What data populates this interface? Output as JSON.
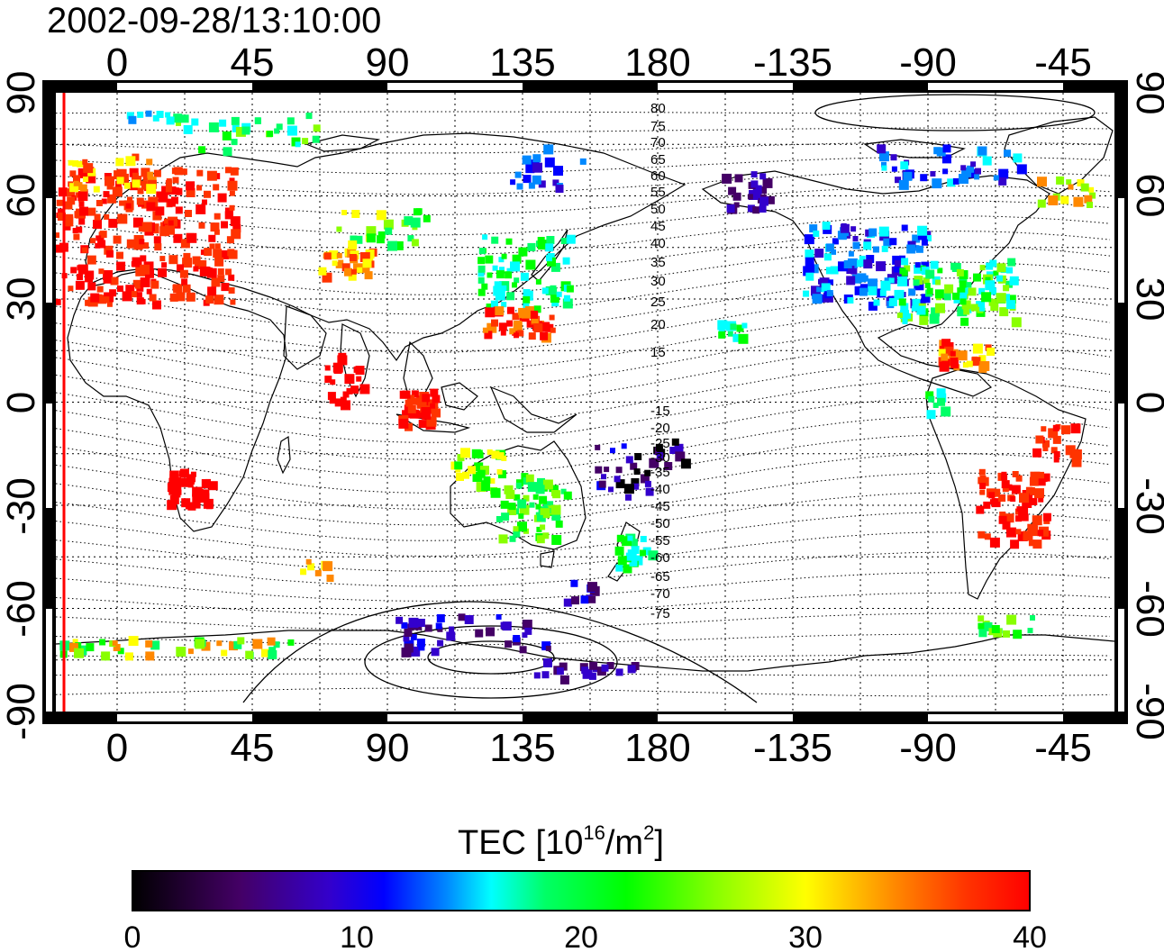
{
  "title": "2002-09-28/13:10:00",
  "map": {
    "lon_ticks_top": [
      "0",
      "45",
      "90",
      "135",
      "180",
      "-135",
      "-90",
      "-45"
    ],
    "lon_ticks_bottom": [
      "0",
      "45",
      "90",
      "135",
      "180",
      "-135",
      "-90",
      "-45"
    ],
    "lat_ticks_left": [
      "90",
      "60",
      "30",
      "0",
      "-30",
      "-60",
      "-90"
    ],
    "lat_ticks_right": [
      "90",
      "60",
      "30",
      "0",
      "-30",
      "-60",
      "-90"
    ],
    "contour_labels_north": [
      "80",
      "75",
      "70",
      "65",
      "60",
      "55",
      "50",
      "45",
      "40",
      "35",
      "30",
      "25",
      "20",
      "15"
    ],
    "contour_labels_south": [
      "-15",
      "-20",
      "-25",
      "-30",
      "-35",
      "-40",
      "-45",
      "-50",
      "-55",
      "-60",
      "-65",
      "-70",
      "-75"
    ]
  },
  "colorbar": {
    "title_main": "TEC  [10",
    "title_sup1": "16",
    "title_mid": "/m",
    "title_sup2": "2",
    "title_end": "]",
    "tick_labels": [
      "0",
      "10",
      "20",
      "30",
      "40"
    ],
    "range": [
      0,
      40
    ]
  },
  "colors": {
    "scale": [
      "#000000",
      "#440066",
      "#3300cc",
      "#0000ff",
      "#0088ff",
      "#00ffff",
      "#00ff66",
      "#00ff00",
      "#88ff00",
      "#ffff00",
      "#ff8800",
      "#ff3300",
      "#ff0000"
    ],
    "terminator": "#ff0000"
  }
}
